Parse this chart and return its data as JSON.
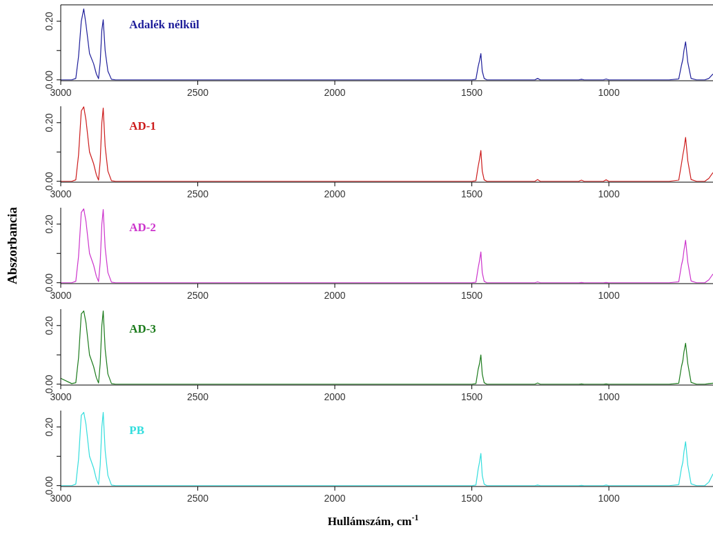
{
  "chart_data": [
    {
      "type": "line",
      "xlim": [
        3000,
        620
      ],
      "ylim": [
        -0.003,
        0.256
      ],
      "xticks": [
        3000,
        2500,
        2000,
        1500,
        1000
      ],
      "yticks": [
        {
          "value": 0,
          "label": "0.00"
        },
        {
          "value": 0.1,
          "label": null
        },
        {
          "value": 0.2,
          "label": "0.20"
        }
      ],
      "grid": false,
      "x": [
        3000,
        2960,
        2945,
        2935,
        2925,
        2916,
        2908,
        2895,
        2880,
        2870,
        2862,
        2856,
        2850,
        2845,
        2838,
        2828,
        2815,
        2800,
        1500,
        1485,
        1477,
        1472,
        1467,
        1462,
        1455,
        1445,
        1270,
        1260,
        1250,
        1110,
        1100,
        1090,
        1020,
        1010,
        1000,
        780,
        745,
        735,
        730,
        726,
        720,
        712,
        700,
        680,
        650,
        635,
        620
      ],
      "series": [
        {
          "name": "Adalék nélkül",
          "color": "#1c1c99",
          "values": [
            0,
            0,
            0.005,
            0.08,
            0.2,
            0.242,
            0.19,
            0.09,
            0.055,
            0.02,
            0.004,
            0.06,
            0.17,
            0.205,
            0.1,
            0.03,
            0.002,
            0,
            0,
            0.002,
            0.045,
            0.065,
            0.09,
            0.03,
            0.005,
            0,
            0,
            0.005,
            0,
            0,
            0.002,
            0,
            0,
            0.003,
            0,
            0,
            0.003,
            0.05,
            0.07,
            0.1,
            0.13,
            0.06,
            0.005,
            0,
            0,
            0.005,
            0.02
          ]
        }
      ]
    },
    {
      "type": "line",
      "xlim": [
        3000,
        620
      ],
      "ylim": [
        -0.003,
        0.256
      ],
      "xticks": [
        3000,
        2500,
        2000,
        1500,
        1000
      ],
      "yticks": [
        {
          "value": 0,
          "label": "0.00"
        },
        {
          "value": 0.1,
          "label": null
        },
        {
          "value": 0.2,
          "label": "0.20"
        }
      ],
      "grid": false,
      "x": [
        3000,
        2960,
        2945,
        2935,
        2925,
        2916,
        2908,
        2895,
        2880,
        2870,
        2862,
        2856,
        2850,
        2845,
        2838,
        2828,
        2815,
        2800,
        1500,
        1485,
        1477,
        1472,
        1467,
        1462,
        1455,
        1445,
        1270,
        1260,
        1250,
        1110,
        1100,
        1090,
        1020,
        1010,
        1000,
        780,
        745,
        735,
        730,
        726,
        720,
        712,
        700,
        680,
        650,
        635,
        620
      ],
      "series": [
        {
          "name": "AD-1",
          "color": "#cc1a1a",
          "values": [
            0,
            0,
            0.005,
            0.09,
            0.24,
            0.254,
            0.21,
            0.1,
            0.06,
            0.022,
            0.004,
            0.07,
            0.2,
            0.25,
            0.12,
            0.035,
            0.002,
            0,
            0,
            0.002,
            0.05,
            0.075,
            0.105,
            0.035,
            0.005,
            0,
            0,
            0.006,
            0,
            0,
            0.004,
            0,
            0,
            0.005,
            0,
            0,
            0.004,
            0.06,
            0.09,
            0.11,
            0.15,
            0.07,
            0.006,
            0,
            0,
            0.01,
            0.03
          ]
        }
      ]
    },
    {
      "type": "line",
      "xlim": [
        3000,
        620
      ],
      "ylim": [
        -0.003,
        0.256
      ],
      "xticks": [
        3000,
        2500,
        2000,
        1500,
        1000
      ],
      "yticks": [
        {
          "value": 0,
          "label": "0.00"
        },
        {
          "value": 0.1,
          "label": null
        },
        {
          "value": 0.2,
          "label": "0.20"
        }
      ],
      "grid": false,
      "ylabel": "Abszorbancia",
      "x": [
        3000,
        2960,
        2945,
        2935,
        2925,
        2916,
        2908,
        2895,
        2880,
        2870,
        2862,
        2856,
        2850,
        2845,
        2838,
        2828,
        2815,
        2800,
        1500,
        1485,
        1477,
        1472,
        1467,
        1462,
        1455,
        1445,
        1270,
        1260,
        1250,
        1110,
        1100,
        1090,
        1020,
        1010,
        1000,
        780,
        745,
        735,
        730,
        726,
        720,
        712,
        700,
        680,
        650,
        635,
        620
      ],
      "series": [
        {
          "name": "AD-2",
          "color": "#cc33cc",
          "values": [
            0,
            0,
            0.005,
            0.09,
            0.24,
            0.252,
            0.21,
            0.1,
            0.06,
            0.022,
            0.004,
            0.07,
            0.2,
            0.25,
            0.12,
            0.035,
            0.002,
            0,
            0,
            0.002,
            0.05,
            0.075,
            0.105,
            0.035,
            0.005,
            0,
            0,
            0.003,
            0,
            0,
            0.001,
            0,
            0,
            0.001,
            0,
            0,
            0.003,
            0.06,
            0.08,
            0.11,
            0.145,
            0.07,
            0.006,
            0,
            0,
            0.01,
            0.03
          ]
        }
      ]
    },
    {
      "type": "line",
      "xlim": [
        3000,
        620
      ],
      "ylim": [
        -0.003,
        0.256
      ],
      "xticks": [
        3000,
        2500,
        2000,
        1500,
        1000
      ],
      "yticks": [
        {
          "value": 0,
          "label": "0.00"
        },
        {
          "value": 0.1,
          "label": null
        },
        {
          "value": 0.2,
          "label": "0.20"
        }
      ],
      "grid": false,
      "x": [
        3000,
        2960,
        2945,
        2935,
        2925,
        2916,
        2908,
        2895,
        2880,
        2870,
        2862,
        2856,
        2850,
        2845,
        2838,
        2828,
        2815,
        2800,
        1500,
        1485,
        1477,
        1472,
        1467,
        1462,
        1455,
        1445,
        1270,
        1260,
        1250,
        1110,
        1100,
        1090,
        1020,
        1010,
        1000,
        780,
        745,
        735,
        730,
        726,
        720,
        712,
        700,
        680,
        650,
        635,
        620
      ],
      "series": [
        {
          "name": "AD-3",
          "color": "#1a7a1a",
          "values": [
            0.02,
            0.002,
            0.005,
            0.09,
            0.24,
            0.25,
            0.21,
            0.1,
            0.06,
            0.022,
            0.004,
            0.07,
            0.2,
            0.25,
            0.12,
            0.035,
            0.002,
            0,
            0,
            0.002,
            0.05,
            0.07,
            0.1,
            0.035,
            0.005,
            0,
            0,
            0.004,
            0,
            0,
            0.001,
            0,
            0,
            0.001,
            0,
            0,
            0.003,
            0.06,
            0.08,
            0.11,
            0.14,
            0.07,
            0.006,
            0,
            0,
            0.002,
            0.003
          ]
        }
      ]
    },
    {
      "type": "line",
      "xlim": [
        3000,
        620
      ],
      "ylim": [
        -0.003,
        0.256
      ],
      "xticks": [
        3000,
        2500,
        2000,
        1500,
        1000
      ],
      "yticks": [
        {
          "value": 0,
          "label": "0.00"
        },
        {
          "value": 0.1,
          "label": null
        },
        {
          "value": 0.2,
          "label": "0.20"
        }
      ],
      "grid": false,
      "xlabel": "Hullámszám, cm$^{-1}$",
      "x": [
        3000,
        2960,
        2945,
        2935,
        2925,
        2916,
        2908,
        2895,
        2880,
        2870,
        2862,
        2856,
        2850,
        2845,
        2838,
        2828,
        2815,
        2800,
        1500,
        1485,
        1477,
        1472,
        1467,
        1462,
        1455,
        1445,
        1270,
        1260,
        1250,
        1110,
        1100,
        1090,
        1020,
        1010,
        1000,
        780,
        745,
        735,
        730,
        726,
        720,
        712,
        700,
        680,
        650,
        635,
        620
      ],
      "series": [
        {
          "name": "PB",
          "color": "#33dddd",
          "values": [
            0,
            0,
            0.005,
            0.09,
            0.24,
            0.25,
            0.21,
            0.1,
            0.06,
            0.022,
            0.004,
            0.07,
            0.2,
            0.25,
            0.12,
            0.035,
            0.002,
            0,
            0,
            0.002,
            0.055,
            0.08,
            0.11,
            0.035,
            0.005,
            0,
            0,
            0.002,
            0,
            0,
            0.001,
            0,
            0,
            0.002,
            0,
            0,
            0.003,
            0.06,
            0.08,
            0.115,
            0.15,
            0.07,
            0.006,
            0,
            0,
            0.012,
            0.04
          ]
        }
      ]
    }
  ]
}
